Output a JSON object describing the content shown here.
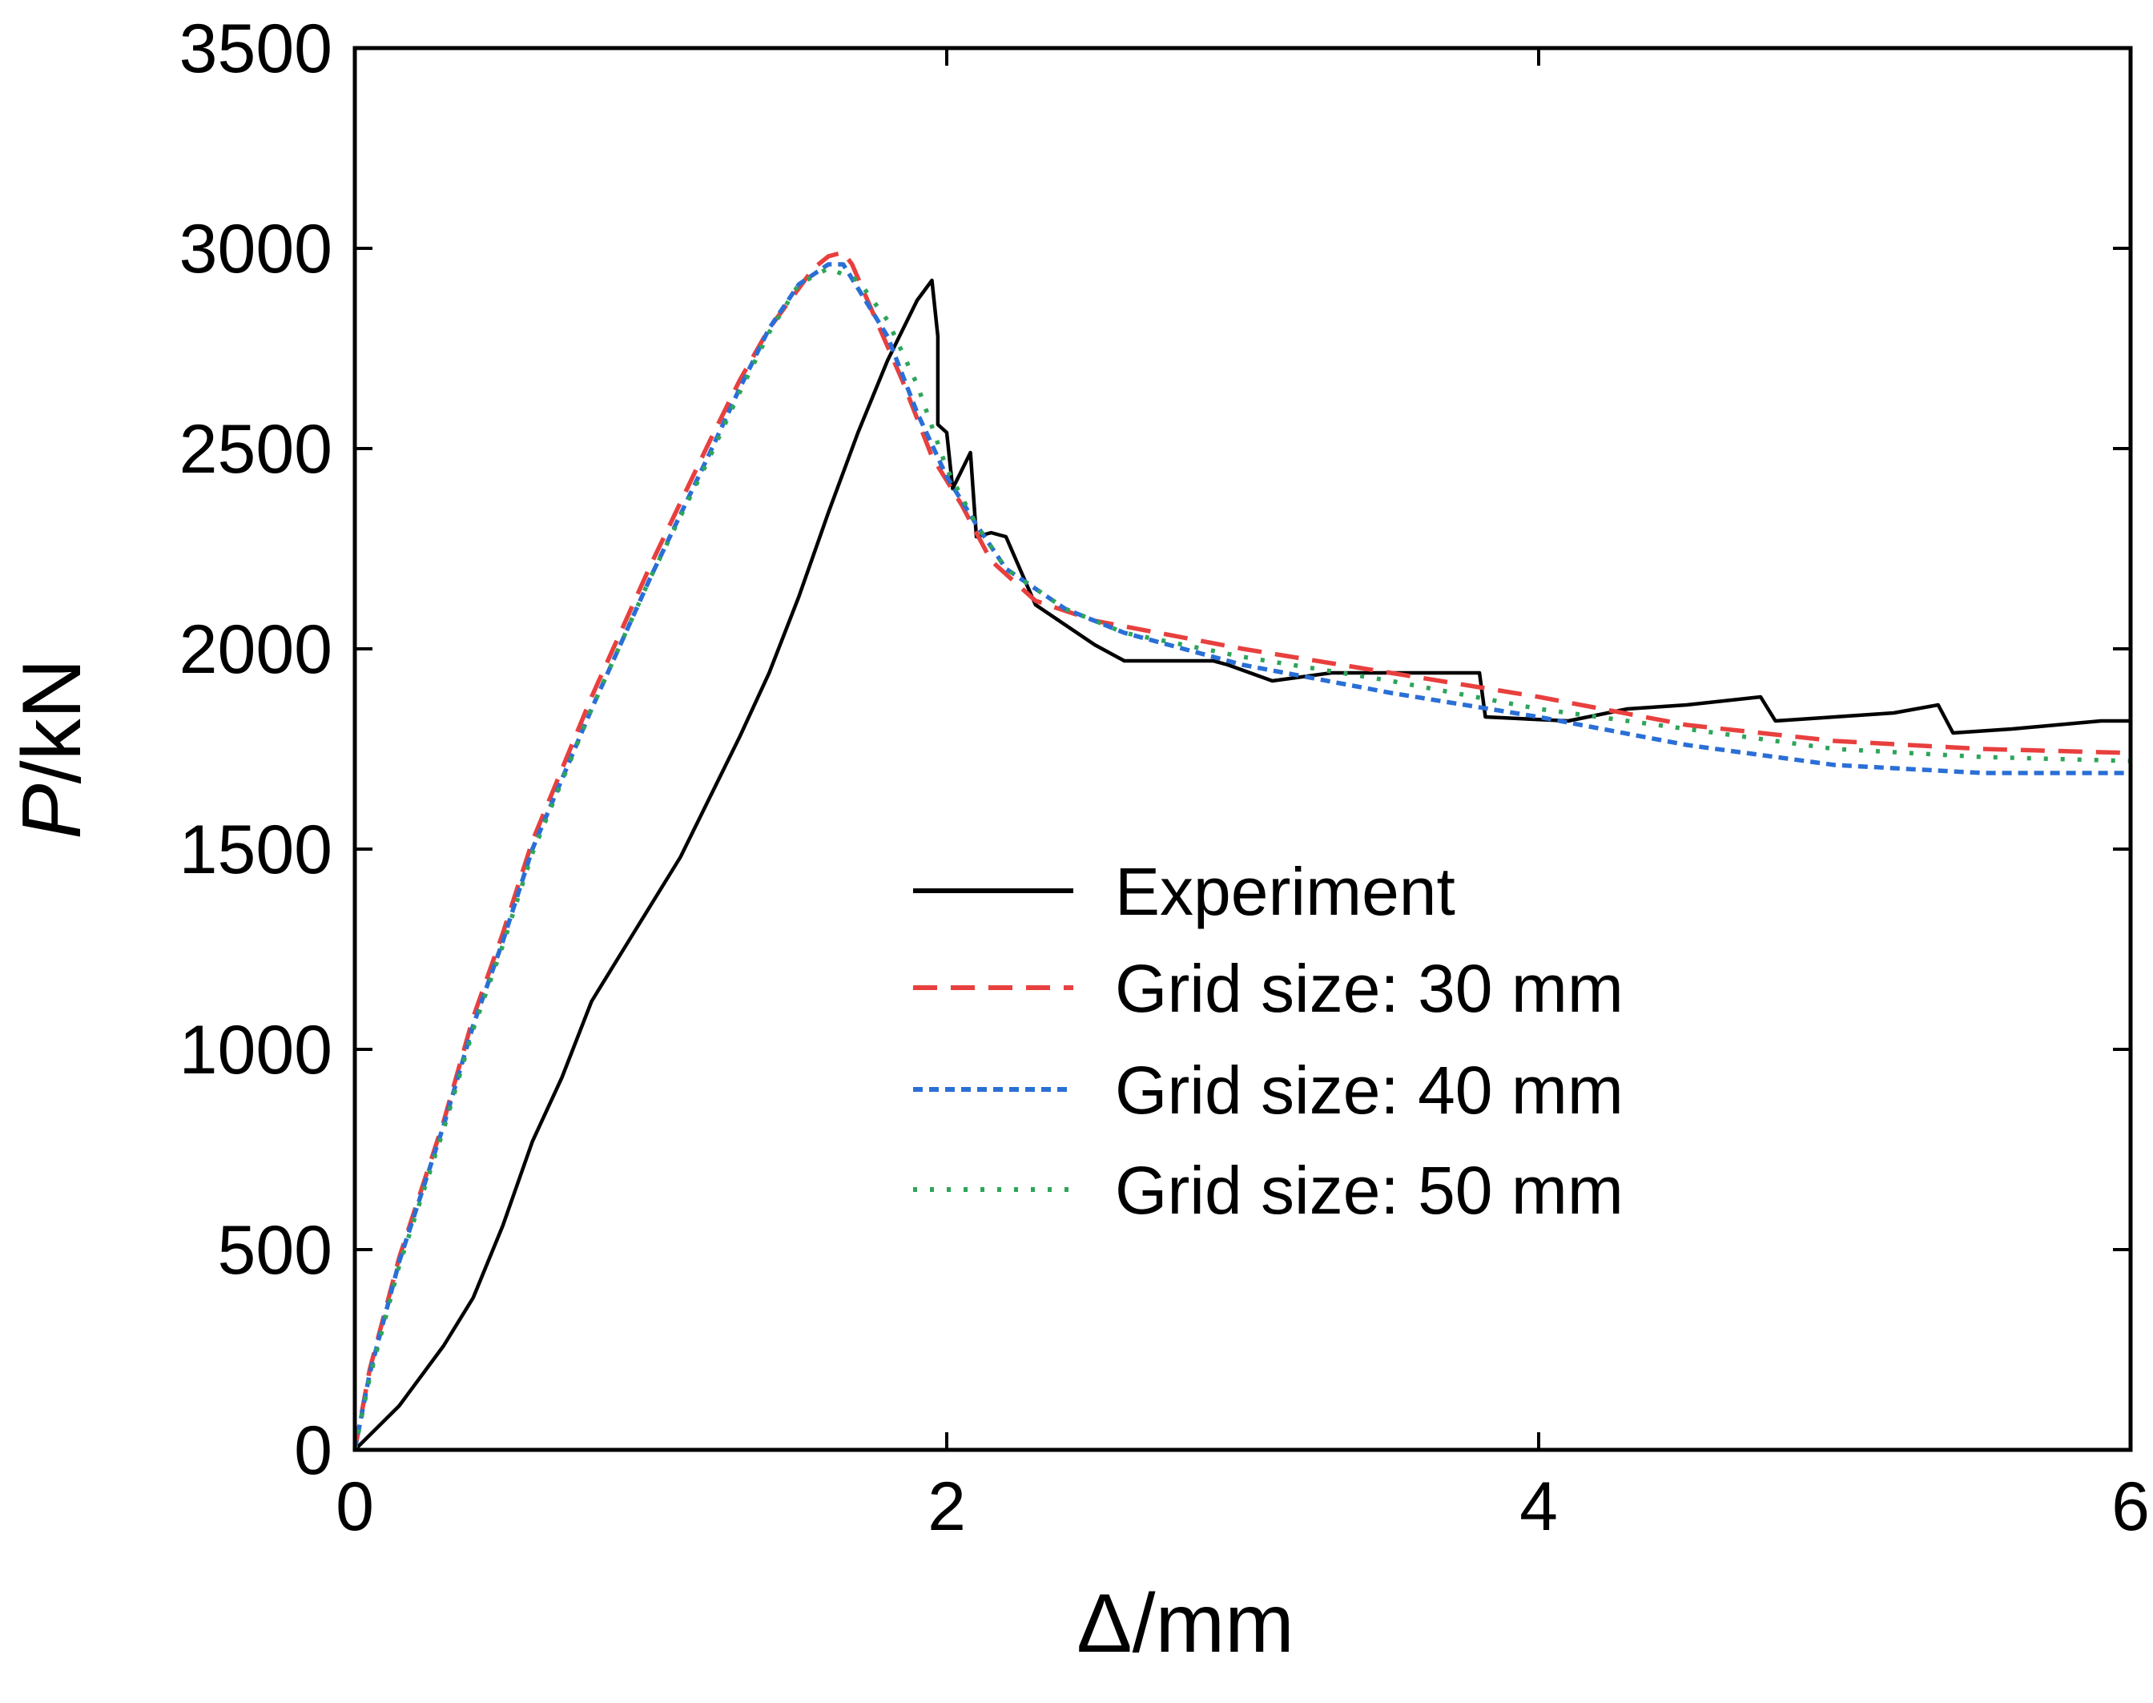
{
  "chart_data": {
    "type": "line",
    "title": "",
    "xlabel": "Δ/mm",
    "ylabel_italic": "P",
    "ylabel_rest": "/kN",
    "xlim": [
      0,
      6
    ],
    "ylim": [
      0,
      3500
    ],
    "xticks": [
      0,
      2,
      4,
      6
    ],
    "yticks": [
      0,
      500,
      1000,
      1500,
      2000,
      2500,
      3000,
      3500
    ],
    "grid": false,
    "legend_position": "center-right",
    "series": [
      {
        "name": "Experiment",
        "color": "#000000",
        "style": "solid",
        "points": [
          [
            0,
            0
          ],
          [
            0.15,
            110
          ],
          [
            0.3,
            260
          ],
          [
            0.4,
            380
          ],
          [
            0.5,
            560
          ],
          [
            0.6,
            770
          ],
          [
            0.7,
            930
          ],
          [
            0.8,
            1120
          ],
          [
            0.9,
            1240
          ],
          [
            1.0,
            1360
          ],
          [
            1.1,
            1480
          ],
          [
            1.2,
            1630
          ],
          [
            1.3,
            1780
          ],
          [
            1.4,
            1940
          ],
          [
            1.5,
            2130
          ],
          [
            1.6,
            2340
          ],
          [
            1.7,
            2540
          ],
          [
            1.8,
            2720
          ],
          [
            1.9,
            2870
          ],
          [
            1.95,
            2920
          ],
          [
            1.97,
            2780
          ],
          [
            1.97,
            2560
          ],
          [
            2.0,
            2540
          ],
          [
            2.02,
            2400
          ],
          [
            2.08,
            2490
          ],
          [
            2.1,
            2280
          ],
          [
            2.15,
            2290
          ],
          [
            2.2,
            2280
          ],
          [
            2.3,
            2110
          ],
          [
            2.4,
            2060
          ],
          [
            2.5,
            2010
          ],
          [
            2.6,
            1970
          ],
          [
            2.9,
            1970
          ],
          [
            2.95,
            1960
          ],
          [
            3.1,
            1920
          ],
          [
            3.3,
            1940
          ],
          [
            3.8,
            1940
          ],
          [
            3.82,
            1830
          ],
          [
            4.1,
            1820
          ],
          [
            4.3,
            1850
          ],
          [
            4.5,
            1860
          ],
          [
            4.75,
            1880
          ],
          [
            4.8,
            1820
          ],
          [
            5.0,
            1830
          ],
          [
            5.2,
            1840
          ],
          [
            5.35,
            1860
          ],
          [
            5.4,
            1790
          ],
          [
            5.6,
            1800
          ],
          [
            5.75,
            1810
          ],
          [
            5.9,
            1820
          ],
          [
            6.0,
            1820
          ]
        ]
      },
      {
        "name": "Grid size: 30 mm",
        "color": "#e8403e",
        "style": "dashed",
        "points": [
          [
            0,
            0
          ],
          [
            0.05,
            200
          ],
          [
            0.15,
            480
          ],
          [
            0.3,
            820
          ],
          [
            0.4,
            1080
          ],
          [
            0.5,
            1290
          ],
          [
            0.6,
            1520
          ],
          [
            0.8,
            1880
          ],
          [
            1.0,
            2210
          ],
          [
            1.2,
            2520
          ],
          [
            1.3,
            2670
          ],
          [
            1.4,
            2800
          ],
          [
            1.5,
            2900
          ],
          [
            1.55,
            2950
          ],
          [
            1.6,
            2980
          ],
          [
            1.65,
            2990
          ],
          [
            1.68,
            2960
          ],
          [
            1.75,
            2840
          ],
          [
            1.85,
            2670
          ],
          [
            1.95,
            2480
          ],
          [
            2.05,
            2360
          ],
          [
            2.15,
            2220
          ],
          [
            2.3,
            2120
          ],
          [
            2.5,
            2070
          ],
          [
            3.0,
            2000
          ],
          [
            3.5,
            1940
          ],
          [
            4.0,
            1880
          ],
          [
            4.5,
            1810
          ],
          [
            5.0,
            1770
          ],
          [
            5.5,
            1750
          ],
          [
            6.0,
            1740
          ]
        ]
      },
      {
        "name": "Grid size: 40 mm",
        "color": "#2a6fd6",
        "style": "dotted",
        "points": [
          [
            0,
            0
          ],
          [
            0.05,
            190
          ],
          [
            0.15,
            470
          ],
          [
            0.3,
            810
          ],
          [
            0.4,
            1060
          ],
          [
            0.5,
            1270
          ],
          [
            0.6,
            1500
          ],
          [
            0.8,
            1850
          ],
          [
            1.0,
            2180
          ],
          [
            1.2,
            2490
          ],
          [
            1.3,
            2650
          ],
          [
            1.4,
            2800
          ],
          [
            1.5,
            2910
          ],
          [
            1.6,
            2960
          ],
          [
            1.65,
            2960
          ],
          [
            1.7,
            2900
          ],
          [
            1.8,
            2780
          ],
          [
            1.9,
            2590
          ],
          [
            2.0,
            2430
          ],
          [
            2.1,
            2310
          ],
          [
            2.2,
            2200
          ],
          [
            2.4,
            2100
          ],
          [
            2.6,
            2040
          ],
          [
            3.0,
            1960
          ],
          [
            3.5,
            1890
          ],
          [
            4.0,
            1830
          ],
          [
            4.5,
            1760
          ],
          [
            5.0,
            1710
          ],
          [
            5.5,
            1690
          ],
          [
            6.0,
            1690
          ]
        ]
      },
      {
        "name": "Grid size: 50 mm",
        "color": "#2ea55a",
        "style": "dotted",
        "points": [
          [
            0,
            0
          ],
          [
            0.05,
            180
          ],
          [
            0.15,
            460
          ],
          [
            0.3,
            800
          ],
          [
            0.4,
            1050
          ],
          [
            0.5,
            1260
          ],
          [
            0.6,
            1490
          ],
          [
            0.8,
            1850
          ],
          [
            1.0,
            2180
          ],
          [
            1.2,
            2480
          ],
          [
            1.3,
            2640
          ],
          [
            1.4,
            2790
          ],
          [
            1.5,
            2910
          ],
          [
            1.6,
            2950
          ],
          [
            1.7,
            2920
          ],
          [
            1.8,
            2820
          ],
          [
            1.9,
            2660
          ],
          [
            2.0,
            2450
          ],
          [
            2.1,
            2310
          ],
          [
            2.2,
            2200
          ],
          [
            2.4,
            2100
          ],
          [
            2.6,
            2040
          ],
          [
            3.0,
            1980
          ],
          [
            3.5,
            1920
          ],
          [
            4.0,
            1850
          ],
          [
            4.5,
            1800
          ],
          [
            5.0,
            1750
          ],
          [
            5.5,
            1730
          ],
          [
            6.0,
            1720
          ]
        ]
      }
    ]
  }
}
